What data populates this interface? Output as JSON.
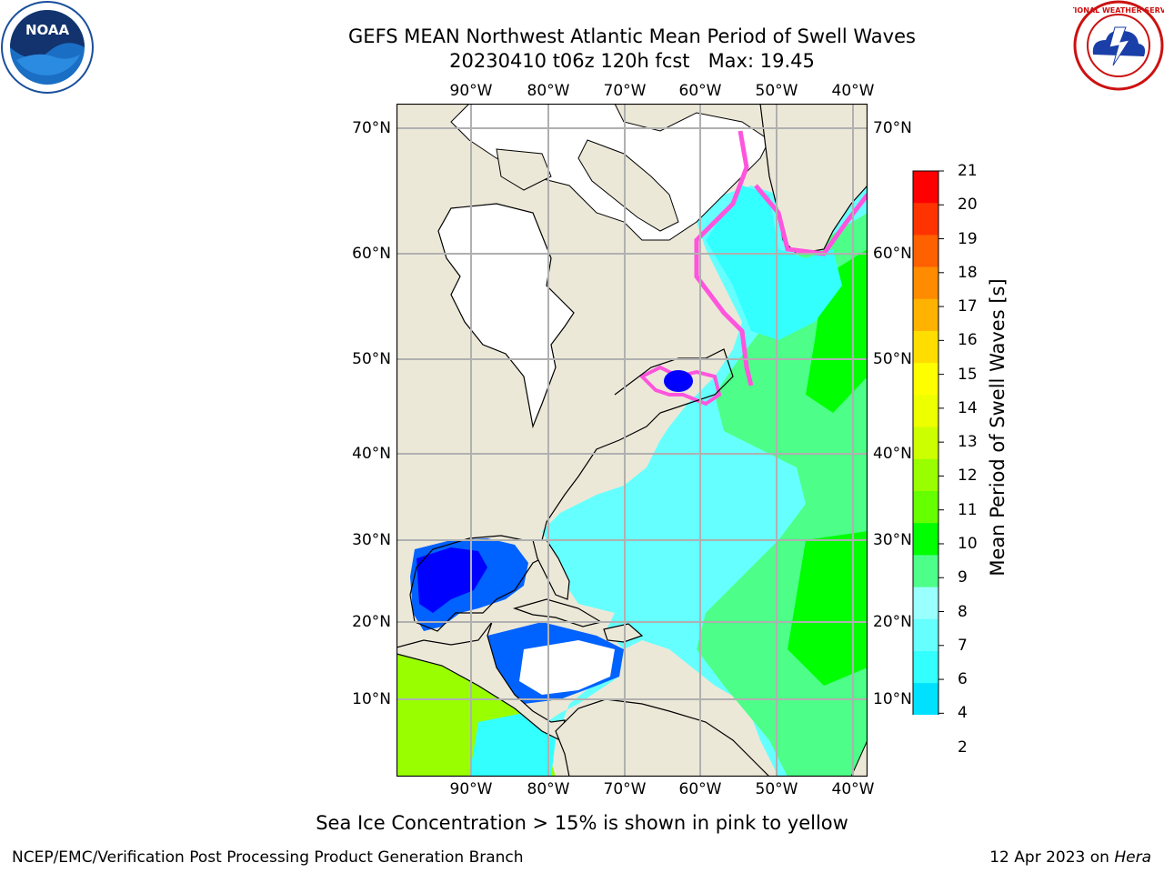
{
  "title": {
    "line1": "GEFS MEAN Northwest Atlantic Mean Period of Swell Waves",
    "line2": "20230410 t06z 120h fcst   Max: 19.45"
  },
  "logos": {
    "left": {
      "name": "noaa-logo",
      "text": "NOAA"
    },
    "right": {
      "name": "nws-logo",
      "text": "NATIONAL WEATHER SERVICE"
    }
  },
  "axes": {
    "lon_labels": [
      "90°W",
      "80°W",
      "70°W",
      "60°W",
      "50°W",
      "40°W"
    ],
    "lat_labels": [
      "70°N",
      "60°N",
      "50°N",
      "40°N",
      "30°N",
      "20°N",
      "10°N"
    ]
  },
  "colorbar": {
    "label": "Mean Period of Swell Waves [s]",
    "ticks": [
      "2",
      "4",
      "6",
      "7",
      "8",
      "9",
      "10",
      "11",
      "12",
      "13",
      "14",
      "15",
      "16",
      "17",
      "18",
      "19",
      "20",
      "21"
    ],
    "colors": [
      "#0062ff",
      "#00e0ff",
      "#33ffff",
      "#66ffff",
      "#99ffff",
      "#4dff88",
      "#00ff00",
      "#66ff00",
      "#99ff00",
      "#ccff00",
      "#eeff00",
      "#ffff00",
      "#ffdd00",
      "#ffb300",
      "#ff8c00",
      "#ff6000",
      "#ff3300",
      "#ff0000"
    ],
    "extend_color": "#0000ff"
  },
  "caption": "Sea Ice Concentration > 15% is shown in pink to yellow",
  "footer": {
    "left": "NCEP/EMC/Verification Post Processing Product Generation Branch",
    "right_date": "12 Apr 2023 on ",
    "right_machine": "Hera"
  }
}
